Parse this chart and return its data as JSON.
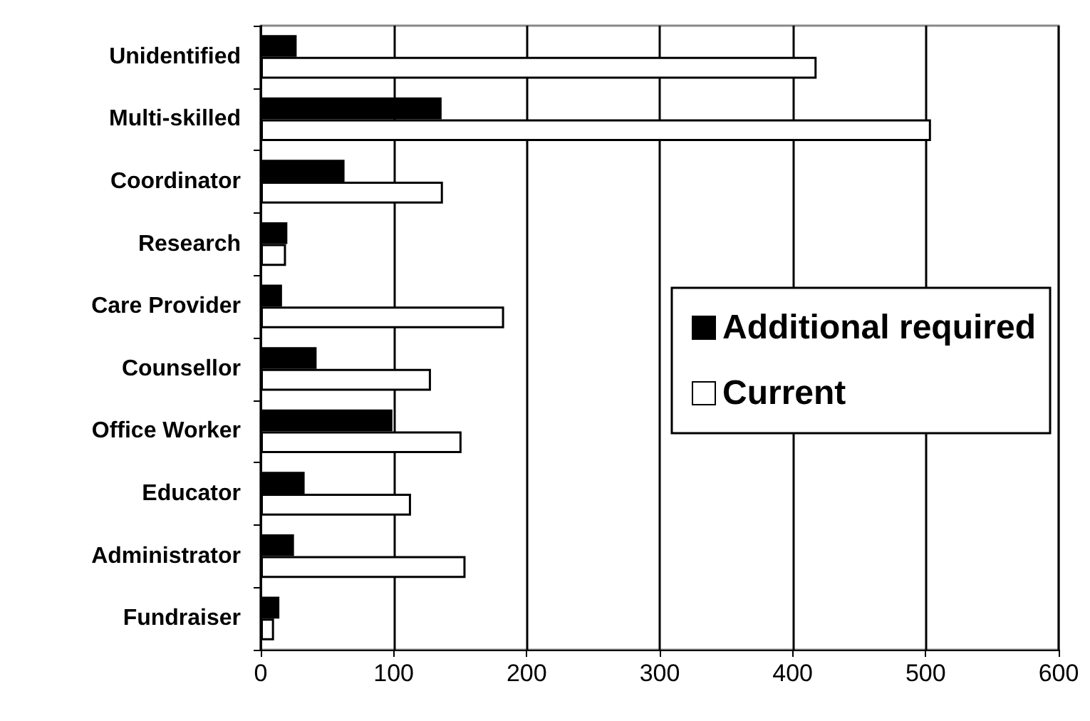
{
  "chart_data": {
    "type": "bar",
    "orientation": "horizontal",
    "categories": [
      "Unidentified",
      "Multi-skilled",
      "Coordinator",
      "Research",
      "Care Provider",
      "Counsellor",
      "Office Worker",
      "Educator",
      "Administrator",
      "Fundraiser"
    ],
    "series": [
      {
        "name": "Additional required",
        "color": "#000000",
        "values": [
          27,
          136,
          63,
          20,
          16,
          42,
          99,
          33,
          25,
          14
        ]
      },
      {
        "name": "Current",
        "color": "#ffffff",
        "values": [
          418,
          504,
          137,
          19,
          183,
          128,
          151,
          113,
          154,
          10
        ]
      }
    ],
    "xlim": [
      0,
      600
    ],
    "xticks": [
      0,
      100,
      200,
      300,
      400,
      500,
      600
    ],
    "grid": "x",
    "legend": "right"
  }
}
